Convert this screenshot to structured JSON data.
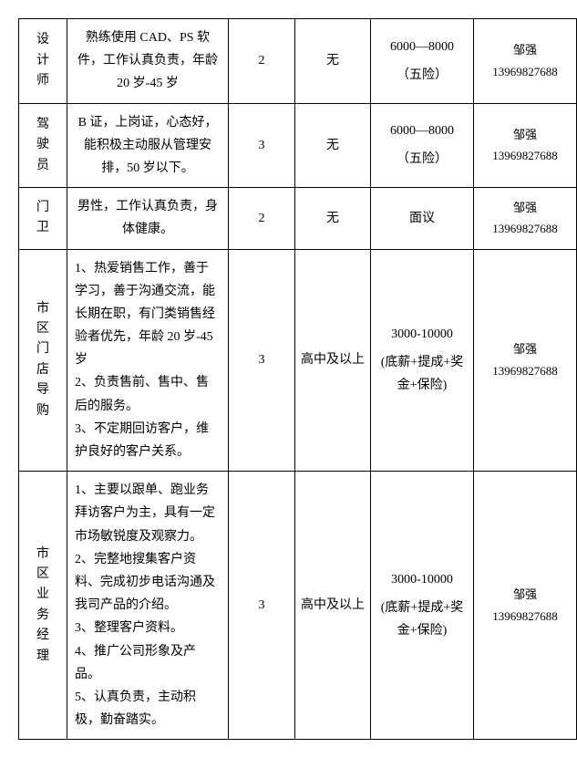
{
  "rows": [
    {
      "position": "设计师",
      "requirement": "熟练使用 CAD、PS 软件，工作认真负责，年龄 20 岁-45 岁",
      "count": "2",
      "education": "无",
      "salary_l1": "6000—8000",
      "salary_l2": "（五险）",
      "contact_name": "邹强",
      "contact_phone": "13969827688",
      "req_center": true
    },
    {
      "position": "驾驶员",
      "requirement": "B 证，上岗证，心态好，能积极主动服从管理安排，50 岁以下。",
      "count": "3",
      "education": "无",
      "salary_l1": "6000—8000",
      "salary_l2": "（五险）",
      "contact_name": "邹强",
      "contact_phone": "13969827688",
      "req_center": true
    },
    {
      "position": "门卫",
      "requirement": "男性，工作认真负责，身体健康。",
      "count": "2",
      "education": "无",
      "salary_l1": "面议",
      "salary_l2": "",
      "contact_name": "邹强",
      "contact_phone": "13969827688",
      "req_center": true
    },
    {
      "position": "市区门店导购",
      "requirement": "1、热爱销售工作，善于学习，善于沟通交流，能长期在职，有门类销售经验者优先，年龄 20 岁-45 岁\n2、负责售前、售中、售后的服务。\n3、不定期回访客户，维护良好的客户关系。",
      "count": "3",
      "education": "高中及以上",
      "salary_l1": "3000-10000",
      "salary_l2": "(底薪+提成+奖金+保险)",
      "contact_name": "邹强",
      "contact_phone": "13969827688",
      "req_center": false
    },
    {
      "position": "市区业务经理",
      "requirement": "1、主要以跟单、跑业务拜访客户为主，具有一定市场敏锐度及观察力。\n2、完整地搜集客户资料、完成初步电话沟通及我司产品的介绍。\n3、整理客户资料。\n4、推广公司形象及产品。\n5、认真负责，主动积极，勤奋踏实。",
      "count": "3",
      "education": "高中及以上",
      "salary_l1": "3000-10000",
      "salary_l2": "(底薪+提成+奖金+保险)",
      "contact_name": "邹强",
      "contact_phone": "13969827688",
      "req_center": false
    }
  ]
}
